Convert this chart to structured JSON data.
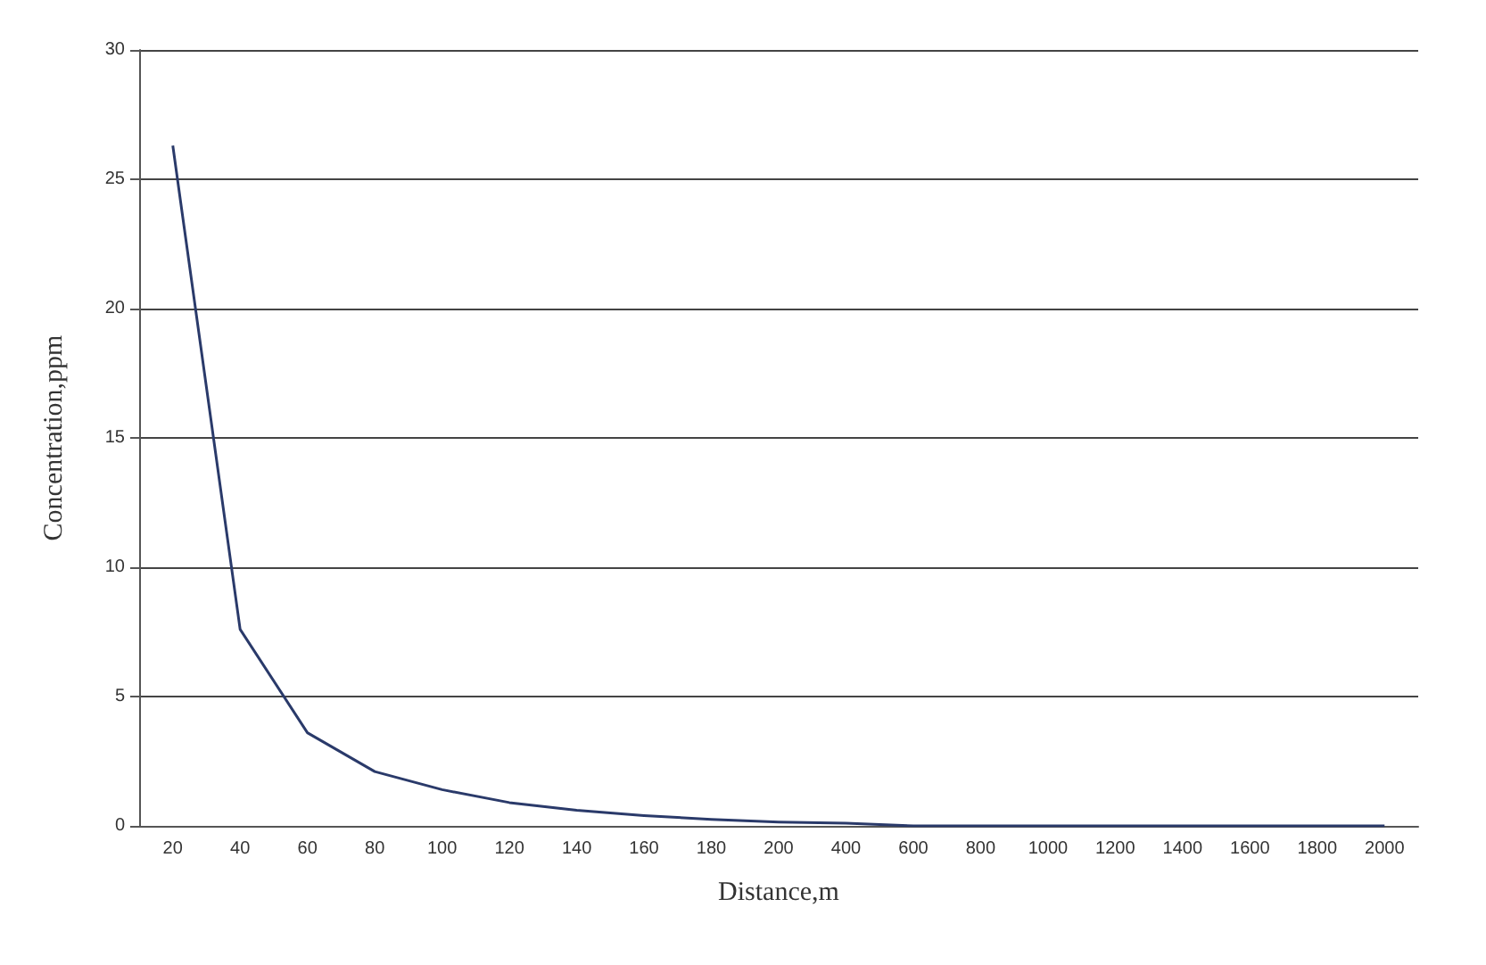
{
  "chart_data": {
    "type": "line",
    "xlabel": "Distance,m",
    "ylabel": "Concentration,ppm",
    "categories": [
      "20",
      "40",
      "60",
      "80",
      "100",
      "120",
      "140",
      "160",
      "180",
      "200",
      "400",
      "600",
      "800",
      "1000",
      "1200",
      "1400",
      "1600",
      "1800",
      "2000"
    ],
    "series": [
      {
        "color": "#2a3a6a",
        "values": [
          26.3,
          7.6,
          3.6,
          2.1,
          1.4,
          0.9,
          0.6,
          0.4,
          0.25,
          0.15,
          0.1,
          0,
          0,
          0,
          0,
          0,
          0,
          0,
          0
        ]
      }
    ],
    "ylim": [
      0,
      30
    ],
    "yticks": [
      0,
      5,
      10,
      15,
      20,
      25,
      30
    ],
    "grid": "y",
    "marker": "none",
    "line_style": "solid"
  }
}
